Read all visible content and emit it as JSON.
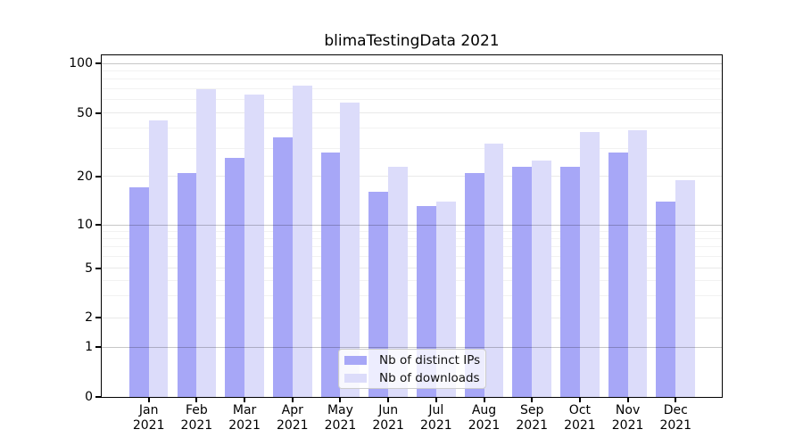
{
  "chart_data": {
    "type": "bar",
    "title": "blimaTestingData 2021",
    "categories": [
      "Jan 2021",
      "Feb 2021",
      "Mar 2021",
      "Apr 2021",
      "May 2021",
      "Jun 2021",
      "Jul 2021",
      "Aug 2021",
      "Sep 2021",
      "Oct 2021",
      "Nov 2021",
      "Dec 2021"
    ],
    "series": [
      {
        "name": "Nb of distinct IPs",
        "color": "#a7a7f7",
        "values": [
          17,
          21,
          26,
          35,
          28,
          16,
          13,
          21,
          23,
          23,
          28,
          14
        ]
      },
      {
        "name": "Nb of downloads",
        "color": "#dcdcfa",
        "values": [
          45,
          70,
          65,
          73,
          58,
          23,
          14,
          32,
          25,
          38,
          39,
          19
        ]
      }
    ],
    "xlabel": "",
    "ylabel": "",
    "yscale": "log (with 0 baseline)",
    "ylim": [
      0,
      115
    ],
    "y_ticks": [
      0,
      1,
      2,
      5,
      10,
      20,
      50,
      100
    ],
    "y_minor_gridlines": [
      3,
      4,
      6,
      7,
      8,
      9,
      30,
      40,
      60,
      70,
      80,
      90
    ],
    "grid": true,
    "legend_position": "lower center inside plot"
  }
}
